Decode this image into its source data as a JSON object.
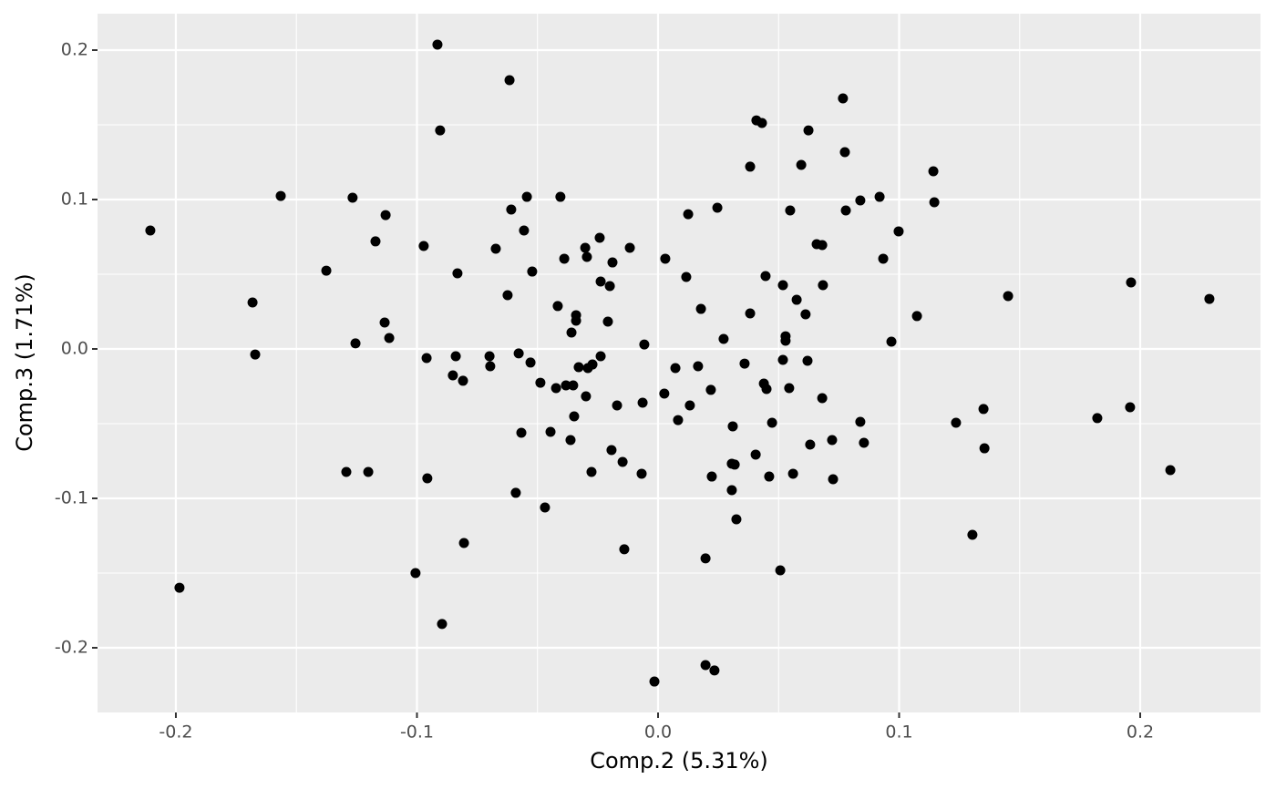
{
  "chart_data": {
    "type": "scatter",
    "x_label": "Comp.2 (5.31%)",
    "y_label": "Comp.3 (1.71%)",
    "color": "#000000",
    "grid": true,
    "xlim": [
      -0.2325,
      0.2499
    ],
    "ylim": [
      -0.2433,
      0.2244
    ],
    "xticks": [
      -0.2,
      -0.1,
      {
        "value": 0,
        "label": "0.0"
      },
      0.1,
      0.2
    ],
    "yticks": [
      -0.2,
      -0.1,
      {
        "value": 0,
        "label": "0.0"
      },
      0.1,
      0.2
    ],
    "x": [
      -0.2106,
      -0.1985,
      -0.1565,
      -0.1682,
      -0.1671,
      -0.1376,
      -0.1293,
      -0.1267,
      -0.1255,
      -0.1202,
      -0.1172,
      -0.113,
      -0.1134,
      -0.1115,
      -0.1006,
      -0.0972,
      -0.096,
      -0.0957,
      -0.0915,
      -0.0904,
      -0.0896,
      -0.0851,
      -0.0839,
      -0.0832,
      -0.0809,
      -0.0805,
      -0.0699,
      -0.0696,
      -0.0673,
      -0.0624,
      -0.0616,
      -0.0609,
      -0.059,
      -0.0578,
      -0.0567,
      -0.0556,
      -0.0544,
      -0.0529,
      -0.0522,
      -0.0488,
      -0.0469,
      -0.0446,
      -0.0423,
      -0.0416,
      -0.0405,
      -0.0389,
      -0.0382,
      -0.0363,
      -0.0359,
      -0.0352,
      -0.0348,
      -0.034,
      -0.034,
      -0.0329,
      -0.0302,
      -0.0299,
      -0.0295,
      -0.0291,
      -0.0276,
      -0.0272,
      -0.0242,
      -0.0238,
      -0.0238,
      -0.0208,
      -0.02,
      -0.0193,
      -0.0189,
      -0.017,
      -0.0147,
      -0.014,
      -0.0117,
      -0.0064,
      -0.0068,
      -0.0057,
      -0.0015,
      0.0026,
      0.003,
      0.0072,
      0.0083,
      0.0117,
      0.0125,
      0.0132,
      0.0166,
      0.0178,
      0.0197,
      0.0197,
      0.0219,
      0.0223,
      0.0234,
      0.0246,
      0.0272,
      0.0306,
      0.031,
      0.0318,
      0.0306,
      0.0325,
      0.0359,
      0.0382,
      0.0382,
      0.0405,
      0.0408,
      0.0431,
      0.0439,
      0.0446,
      0.045,
      0.0461,
      0.0473,
      0.0507,
      0.0518,
      0.0518,
      0.0529,
      0.0529,
      0.0544,
      0.0548,
      0.056,
      0.0575,
      0.0594,
      0.0612,
      0.062,
      0.0624,
      0.0631,
      0.0658,
      0.0681,
      0.0681,
      0.0684,
      0.0722,
      0.0726,
      0.0767,
      0.0775,
      0.0779,
      0.0839,
      0.0839,
      0.0854,
      0.0919,
      0.0934,
      0.0968,
      0.0998,
      0.1074,
      0.1142,
      0.1146,
      0.1236,
      0.1304,
      0.135,
      0.1354,
      0.1452,
      0.1822,
      0.1958,
      0.1962,
      0.2125,
      0.2287
    ],
    "values": [
      0.0793,
      -0.1598,
      0.1024,
      0.0311,
      -0.0037,
      0.0524,
      -0.0823,
      0.1012,
      0.0037,
      -0.0823,
      0.072,
      0.0896,
      0.0177,
      0.0073,
      -0.15,
      0.0689,
      -0.0061,
      -0.0866,
      0.2037,
      0.1463,
      -0.1841,
      -0.0177,
      -0.0049,
      0.0506,
      -0.0213,
      -0.1299,
      -0.0049,
      -0.0116,
      0.0671,
      0.036,
      0.1799,
      0.0933,
      -0.0963,
      -0.003,
      -0.0561,
      0.0793,
      0.1018,
      -0.0091,
      0.0518,
      -0.0226,
      -0.1061,
      -0.0555,
      -0.0262,
      0.0287,
      0.1018,
      0.0604,
      -0.0244,
      -0.061,
      0.011,
      -0.0244,
      -0.0451,
      0.0226,
      0.0189,
      -0.0122,
      0.0677,
      -0.0317,
      0.0616,
      -0.0128,
      -0.0823,
      -0.0104,
      0.0744,
      0.0451,
      -0.0049,
      0.0183,
      0.0421,
      -0.0677,
      0.0579,
      -0.0378,
      -0.0756,
      -0.1341,
      0.0677,
      -0.036,
      -0.0835,
      0.003,
      -0.2226,
      -0.0299,
      0.0604,
      -0.0128,
      -0.0476,
      0.0482,
      0.0902,
      -0.0378,
      -0.0116,
      0.0268,
      -0.1402,
      -0.2116,
      -0.0274,
      -0.0854,
      -0.2152,
      0.0945,
      0.0067,
      -0.0768,
      -0.0518,
      -0.0774,
      -0.0945,
      -0.114,
      -0.0098,
      0.122,
      0.0238,
      -0.0707,
      0.153,
      0.1512,
      -0.0232,
      0.0488,
      -0.0268,
      -0.0854,
      -0.0494,
      -0.1482,
      0.0427,
      -0.0073,
      0.0085,
      0.0055,
      -0.0262,
      0.0927,
      -0.0835,
      0.0329,
      0.1232,
      0.0232,
      -0.0079,
      0.1463,
      -0.064,
      0.0701,
      0.0695,
      -0.0329,
      0.0427,
      -0.061,
      -0.0872,
      0.1677,
      0.1317,
      0.0927,
      0.0994,
      -0.0488,
      -0.0628,
      0.1018,
      0.0604,
      0.0049,
      0.0787,
      0.022,
      0.1189,
      0.0982,
      -0.0494,
      -0.1244,
      -0.0402,
      -0.0665,
      0.0354,
      -0.0463,
      -0.039,
      0.0445,
      -0.0811,
      0.0335
    ]
  }
}
